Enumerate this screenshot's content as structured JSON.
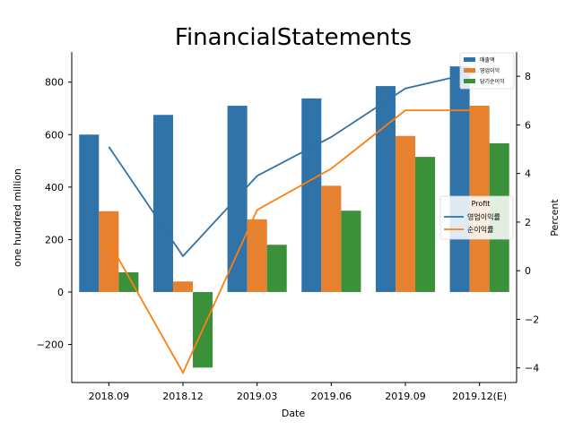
{
  "chart_data": {
    "type": "bar",
    "title": "FinancialStatements",
    "xlabel": "Date",
    "ylabel": "one hundred million",
    "y2label": "Percent",
    "categories": [
      "2018.09",
      "2018.12",
      "2019.03",
      "2019.06",
      "2019.09",
      "2019.12(E)"
    ],
    "ylim": [
      -345,
      915
    ],
    "y2lim": [
      -4.6,
      9.0
    ],
    "yticks": [
      -200,
      0,
      200,
      400,
      600,
      800
    ],
    "ytick_labels": [
      "−200",
      "0",
      "200",
      "400",
      "600",
      "800"
    ],
    "y2ticks": [
      -4,
      -2,
      0,
      2,
      4,
      6,
      8
    ],
    "y2tick_labels": [
      "−4",
      "−2",
      "0",
      "2",
      "4",
      "6",
      "8"
    ],
    "grid": false,
    "bar_series": [
      {
        "name": "매출액",
        "color": "#2f73a8",
        "values": [
          600,
          675,
          710,
          738,
          785,
          860
        ]
      },
      {
        "name": "영업이익",
        "color": "#e5812f",
        "values": [
          308,
          40,
          277,
          405,
          595,
          710
        ]
      },
      {
        "name": "당기순이익",
        "color": "#3a9139",
        "values": [
          75,
          -288,
          180,
          310,
          515,
          567
        ]
      }
    ],
    "bar_legend": {
      "placement": "upper right"
    },
    "line_series": [
      {
        "name": "영업이익률",
        "color": "#2f73a8",
        "values": [
          5.1,
          0.6,
          3.9,
          5.5,
          7.5,
          8.2
        ]
      },
      {
        "name": "순이익률",
        "color": "#ff7f0e",
        "values": [
          1.2,
          -4.2,
          2.5,
          4.2,
          6.6,
          6.6
        ]
      }
    ],
    "line_legend": {
      "title": "Profit",
      "placement": "center right"
    }
  }
}
